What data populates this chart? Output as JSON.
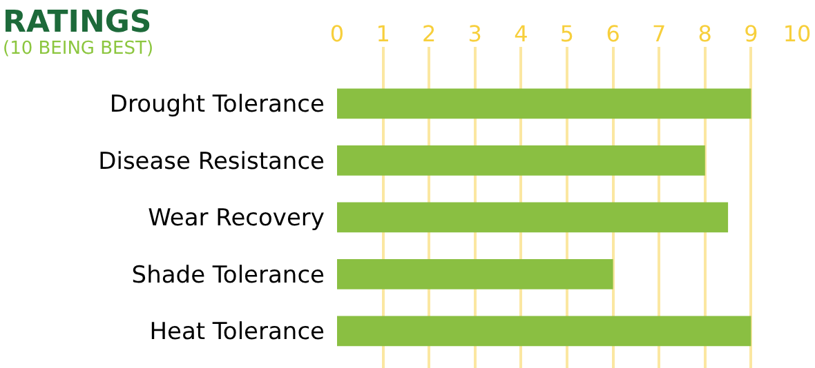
{
  "chart_data": {
    "type": "bar",
    "orientation": "horizontal",
    "title": "RATINGS",
    "subtitle": "(10 BEING BEST)",
    "categories": [
      "Drought Tolerance",
      "Disease Resistance",
      "Wear Recovery",
      "Shade Tolerance",
      "Heat Tolerance"
    ],
    "values": [
      9,
      8,
      8.5,
      6,
      9
    ],
    "color": "#8abf42",
    "xlim": [
      0,
      10
    ],
    "xticks": [
      0,
      1,
      2,
      3,
      4,
      5,
      6,
      7,
      8,
      9,
      10
    ],
    "grid": "x",
    "legend": false
  }
}
